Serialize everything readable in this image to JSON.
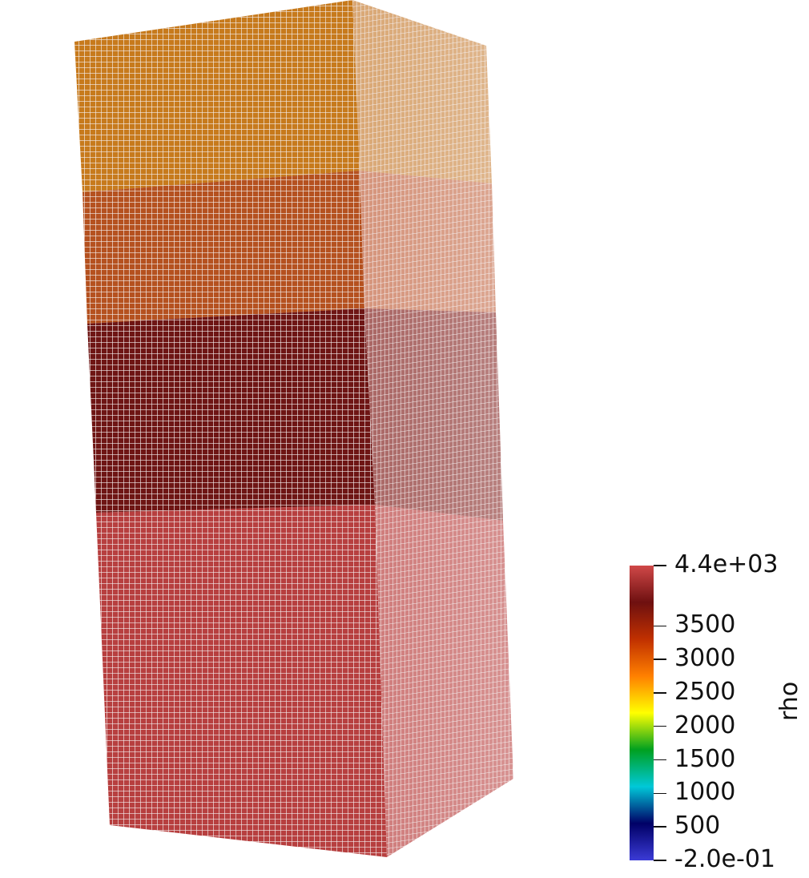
{
  "scene": {
    "background": "#ffffff",
    "mesh_line_color": "#f2f2f2",
    "layers": [
      {
        "name": "top-layer",
        "front_color": "#c77a1c",
        "side_color": "#d9a774"
      },
      {
        "name": "upper-middle-layer",
        "front_color": "#b5511f",
        "side_color": "#d5947b"
      },
      {
        "name": "lower-middle-layer",
        "front_color": "#6e1514",
        "side_color": "#a96664"
      },
      {
        "name": "bottom-layer",
        "front_color": "#b73f3f",
        "side_color": "#cf7c7b"
      }
    ]
  },
  "colorbar": {
    "title": "rho",
    "labels": [
      "4.4e+03",
      "3500",
      "3000",
      "2500",
      "2000",
      "1500",
      "1000",
      "500",
      "-2.0e-01"
    ],
    "label_values": [
      4400,
      3500,
      3000,
      2500,
      2000,
      1500,
      1000,
      500,
      -0.2
    ],
    "range": [
      -0.2,
      4400
    ],
    "colors": [
      "#3b3bd6",
      "#000066",
      "#00c8d8",
      "#00a020",
      "#ffff00",
      "#ff8000",
      "#c03000",
      "#6e1010",
      "#d04848"
    ]
  }
}
